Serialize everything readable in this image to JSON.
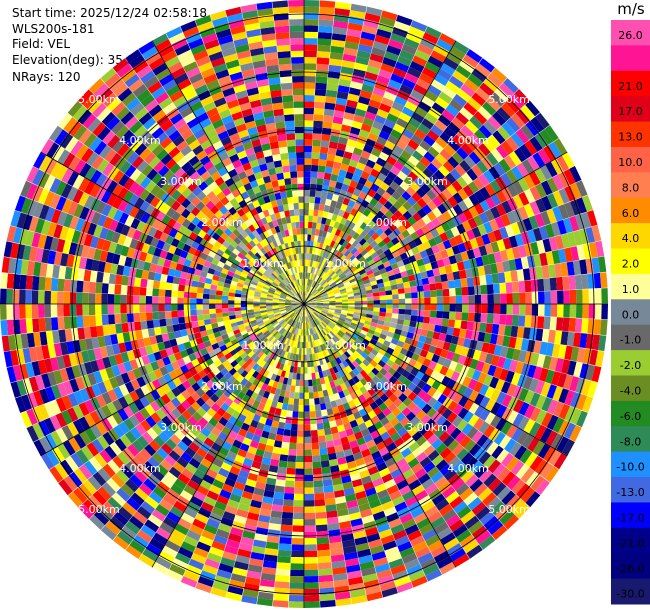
{
  "info": {
    "start_time": "Start time: 2025/12/24 02:58:18",
    "instrument": "WLS200s-181",
    "field": "Field: VEL",
    "elevation": "Elevation(deg): 35.00",
    "nrays": "NRays: 120"
  },
  "colorbar": {
    "unit": "m/s",
    "levels": [
      {
        "label": "26.0",
        "color": "#ff4fb0"
      },
      {
        "label": "",
        "color": "#ff1493"
      },
      {
        "label": "21.0",
        "color": "#ff0000"
      },
      {
        "label": "17.0",
        "color": "#e0001a"
      },
      {
        "label": "13.0",
        "color": "#ff3300"
      },
      {
        "label": "10.0",
        "color": "#ff6347"
      },
      {
        "label": "8.0",
        "color": "#ff7f50"
      },
      {
        "label": "6.0",
        "color": "#ff8c00"
      },
      {
        "label": "4.0",
        "color": "#ffd700"
      },
      {
        "label": "2.0",
        "color": "#ffff00"
      },
      {
        "label": "1.0",
        "color": "#ffff99"
      },
      {
        "label": "0.0",
        "color": "#778899"
      },
      {
        "label": "-1.0",
        "color": "#696969"
      },
      {
        "label": "-2.0",
        "color": "#9acd32"
      },
      {
        "label": "-4.0",
        "color": "#6b8e23"
      },
      {
        "label": "-6.0",
        "color": "#228b22"
      },
      {
        "label": "-8.0",
        "color": "#2e8b57"
      },
      {
        "label": "-10.0",
        "color": "#1e90ff"
      },
      {
        "label": "-13.0",
        "color": "#4169e1"
      },
      {
        "label": "-17.0",
        "color": "#0000ff"
      },
      {
        "label": "-21.0",
        "color": "#00008b"
      },
      {
        "label": "-26.0",
        "color": "#000080"
      },
      {
        "label": "-30.0",
        "color": "#191970"
      }
    ]
  },
  "chart_data": {
    "type": "heatmap",
    "projection": "polar PPI",
    "field": "VEL",
    "nrays": 120,
    "range_ring_labels": [
      "1.00km",
      "2.00km",
      "3.00km",
      "4.00km",
      "5.00km"
    ],
    "colormap_unit": "m/s",
    "value_range": [
      -30.0,
      26.0
    ],
    "notes_visible": "inner ~1.5km mixed yellow/gray near-zero velocities; outer rings noisy multicolor"
  }
}
